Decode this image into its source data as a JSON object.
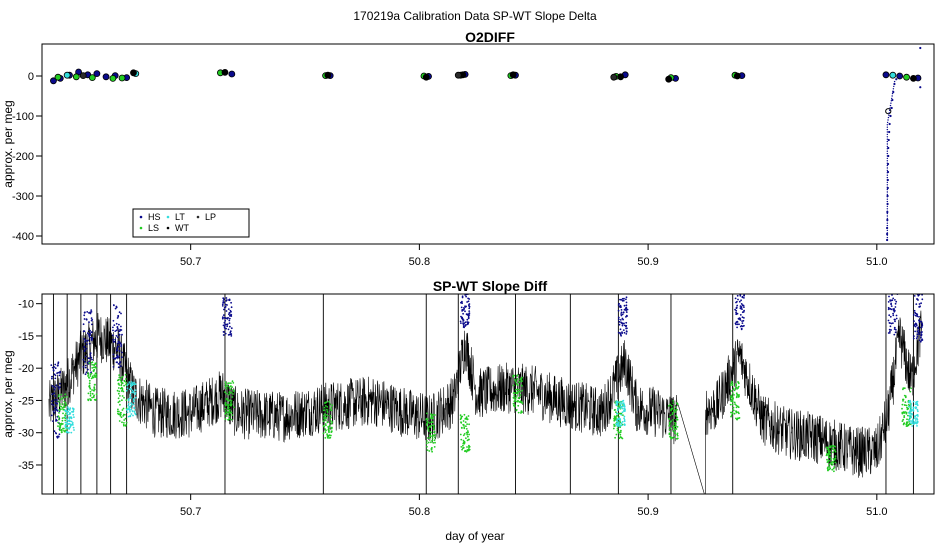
{
  "figure_title": "170219a   Calibration Data SP-WT Slope Delta",
  "colors": {
    "HS": "#0a0a8c",
    "LS": "#22cc22",
    "LT": "#33dddd",
    "WT": "#000000",
    "LP": "#2a2a2a",
    "trace": "#000000"
  },
  "chart_data": [
    {
      "type": "scatter",
      "title": "O2DIFF",
      "xlabel": "",
      "ylabel": "approx. per meg",
      "xlim": [
        50.635,
        51.025
      ],
      "ylim": [
        -420,
        80
      ],
      "xticks": [
        50.7,
        50.8,
        50.9,
        51.0
      ],
      "xtick_labels": [
        "50.7",
        "50.8",
        "50.9",
        "51.0"
      ],
      "yticks": [
        0,
        -100,
        -200,
        -300,
        -400
      ],
      "ytick_labels": [
        "0",
        "-100",
        "-200",
        "-300",
        "-400"
      ],
      "legend_position": "bottom-left",
      "legend": [
        {
          "key": "HS",
          "label": "HS"
        },
        {
          "key": "LS",
          "label": "LS"
        },
        {
          "key": "LT",
          "label": "LT"
        },
        {
          "key": "WT",
          "label": "WT"
        },
        {
          "key": "LP",
          "label": "LP"
        }
      ],
      "series": [
        {
          "name": "HS",
          "points": [
            [
              50.64,
              -12
            ],
            [
              50.643,
              -6
            ],
            [
              50.647,
              2
            ],
            [
              50.651,
              10
            ],
            [
              50.655,
              3
            ],
            [
              50.659,
              6
            ],
            [
              50.663,
              -2
            ],
            [
              50.667,
              1
            ],
            [
              50.672,
              -4
            ],
            [
              50.718,
              5
            ],
            [
              50.761,
              1
            ],
            [
              50.804,
              -1
            ],
            [
              50.82,
              4
            ],
            [
              50.842,
              2
            ],
            [
              50.89,
              3
            ],
            [
              50.912,
              -6
            ],
            [
              50.941,
              1
            ],
            [
              51.004,
              3
            ],
            [
              51.01,
              0
            ],
            [
              51.018,
              -5
            ]
          ]
        },
        {
          "name": "LS",
          "points": [
            [
              50.642,
              -3
            ],
            [
              50.65,
              -2
            ],
            [
              50.657,
              -4
            ],
            [
              50.666,
              -6
            ],
            [
              50.67,
              -5
            ],
            [
              50.713,
              8
            ],
            [
              50.759,
              1
            ],
            [
              50.802,
              0
            ],
            [
              50.818,
              2
            ],
            [
              50.84,
              1
            ],
            [
              50.886,
              -1
            ],
            [
              50.91,
              -4
            ],
            [
              50.938,
              2
            ],
            [
              51.013,
              -3
            ]
          ]
        },
        {
          "name": "LT",
          "points": [
            [
              50.646,
              2
            ],
            [
              50.676,
              6
            ],
            [
              51.007,
              2
            ]
          ]
        },
        {
          "name": "WT",
          "points": [
            [
              50.675,
              8
            ],
            [
              50.715,
              9
            ],
            [
              50.76,
              2
            ],
            [
              50.803,
              -3
            ],
            [
              50.819,
              3
            ],
            [
              50.841,
              3
            ],
            [
              50.888,
              -2
            ],
            [
              50.909,
              -8
            ],
            [
              50.939,
              0
            ],
            [
              51.005,
              -88
            ],
            [
              51.016,
              -6
            ]
          ]
        },
        {
          "name": "LP",
          "points": [
            [
              50.653,
              1
            ],
            [
              50.817,
              2
            ],
            [
              50.885,
              -3
            ]
          ]
        },
        {
          "name": "HS-drift",
          "points": [
            [
              51.0045,
              -410
            ],
            [
              51.0045,
              -395
            ],
            [
              51.0045,
              -380
            ],
            [
              51.0046,
              -360
            ],
            [
              51.0046,
              -340
            ],
            [
              51.0047,
              -320
            ],
            [
              51.0047,
              -300
            ],
            [
              51.0048,
              -280
            ],
            [
              51.0048,
              -260
            ],
            [
              51.0049,
              -240
            ],
            [
              51.0049,
              -220
            ],
            [
              51.005,
              -200
            ],
            [
              51.005,
              -180
            ],
            [
              51.0052,
              -160
            ],
            [
              51.0054,
              -140
            ],
            [
              51.0056,
              -120
            ],
            [
              51.006,
              -100
            ],
            [
              51.0065,
              -80
            ],
            [
              51.0068,
              -60
            ],
            [
              51.0072,
              -40
            ],
            [
              51.0077,
              -20
            ],
            [
              51.0085,
              -8
            ],
            [
              51.019,
              70
            ],
            [
              51.019,
              -28
            ]
          ]
        }
      ]
    },
    {
      "type": "line",
      "title": "SP-WT Slope Diff",
      "xlabel": "day of year",
      "ylabel": "approx. per meg",
      "xlim": [
        50.635,
        51.025
      ],
      "ylim": [
        -39.5,
        -8.5
      ],
      "xticks": [
        50.7,
        50.8,
        50.9,
        51.0
      ],
      "xtick_labels": [
        "50.7",
        "50.8",
        "50.9",
        "51.0"
      ],
      "yticks": [
        -10,
        -15,
        -20,
        -25,
        -30,
        -35
      ],
      "ytick_labels": [
        "-10",
        "-15",
        "-20",
        "-25",
        "-30",
        "-35"
      ],
      "trace_baseline": [
        [
          50.638,
          -26
        ],
        [
          50.645,
          -23
        ],
        [
          50.652,
          -18
        ],
        [
          50.66,
          -15
        ],
        [
          50.668,
          -17
        ],
        [
          50.675,
          -24
        ],
        [
          50.685,
          -27
        ],
        [
          50.7,
          -27
        ],
        [
          50.714,
          -24
        ],
        [
          50.72,
          -27
        ],
        [
          50.74,
          -27.5
        ],
        [
          50.76,
          -26
        ],
        [
          50.78,
          -25
        ],
        [
          50.795,
          -27
        ],
        [
          50.805,
          -28
        ],
        [
          50.815,
          -25
        ],
        [
          50.82,
          -16
        ],
        [
          50.825,
          -24
        ],
        [
          50.84,
          -23
        ],
        [
          50.85,
          -23.5
        ],
        [
          50.86,
          -25
        ],
        [
          50.87,
          -26
        ],
        [
          50.88,
          -27
        ],
        [
          50.89,
          -19
        ],
        [
          50.895,
          -26
        ],
        [
          50.905,
          -27
        ],
        [
          50.912,
          -28
        ],
        [
          50.93,
          -26
        ],
        [
          50.94,
          -18
        ],
        [
          50.95,
          -28
        ],
        [
          50.96,
          -30
        ],
        [
          50.975,
          -31
        ],
        [
          50.99,
          -33
        ],
        [
          51.0,
          -33
        ],
        [
          51.005,
          -27
        ],
        [
          51.01,
          -15
        ],
        [
          51.015,
          -22
        ],
        [
          51.02,
          -13
        ]
      ],
      "trace_spread": 4,
      "spikes": [
        50.64,
        50.646,
        50.652,
        50.659,
        50.665,
        50.672,
        50.715,
        50.758,
        50.803,
        50.817,
        50.842,
        50.866,
        50.887,
        50.91,
        50.937,
        51.004,
        51.016
      ],
      "gap": [
        50.913,
        50.925
      ],
      "series": [
        {
          "name": "HS",
          "clusters": [
            [
              50.641,
              -25,
              6
            ],
            [
              50.655,
              -16,
              5
            ],
            [
              50.668,
              -15,
              5
            ],
            [
              50.716,
              -12,
              3
            ],
            [
              50.82,
              -11,
              3
            ],
            [
              50.889,
              -12,
              3
            ],
            [
              50.94,
              -11,
              3
            ],
            [
              51.007,
              -11,
              4
            ],
            [
              51.018,
              -12,
              4
            ]
          ]
        },
        {
          "name": "LS",
          "clusters": [
            [
              50.644,
              -27,
              3
            ],
            [
              50.657,
              -22,
              3
            ],
            [
              50.67,
              -25,
              4
            ],
            [
              50.717,
              -25,
              3
            ],
            [
              50.76,
              -28,
              3
            ],
            [
              50.805,
              -30,
              3
            ],
            [
              50.82,
              -30,
              3
            ],
            [
              50.843,
              -24,
              3
            ],
            [
              50.887,
              -28,
              3
            ],
            [
              50.911,
              -28,
              3
            ],
            [
              50.938,
              -25,
              3
            ],
            [
              50.98,
              -34,
              2
            ],
            [
              51.013,
              -26,
              3
            ]
          ]
        },
        {
          "name": "LT",
          "clusters": [
            [
              50.647,
              -28,
              2
            ],
            [
              50.674,
              -25,
              3
            ],
            [
              50.888,
              -27,
              2
            ],
            [
              51.016,
              -27,
              2
            ]
          ]
        }
      ]
    }
  ]
}
